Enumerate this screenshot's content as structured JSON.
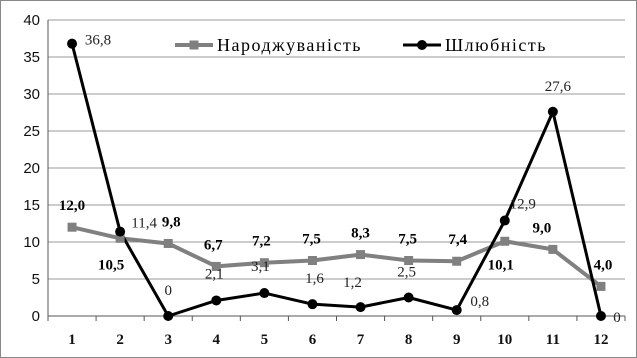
{
  "chart_data": {
    "type": "line",
    "title": "",
    "xlabel": "",
    "ylabel": "",
    "x": [
      "1",
      "2",
      "3",
      "4",
      "5",
      "6",
      "7",
      "8",
      "9",
      "10",
      "11",
      "12"
    ],
    "ylim": [
      0,
      40
    ],
    "yticks": [
      "0",
      "5",
      "10",
      "15",
      "20",
      "25",
      "30",
      "35",
      "40"
    ],
    "grid": true,
    "legend": "top",
    "series": [
      {
        "name": "Народжуваність",
        "color": "#808080",
        "marker": "square",
        "values": [
          12.0,
          10.5,
          9.8,
          6.7,
          7.2,
          7.5,
          8.3,
          7.5,
          7.4,
          10.1,
          9.0,
          4.0
        ],
        "labels": [
          "12,0",
          "10,5",
          "9,8",
          "6,7",
          "7,2",
          "7,5",
          "8,3",
          "7,5",
          "7,4",
          "10,1",
          "9,0",
          "4,0"
        ]
      },
      {
        "name": "Шлюбність",
        "color": "#000000",
        "marker": "circle",
        "values": [
          36.8,
          11.4,
          0,
          2.1,
          3.1,
          1.6,
          1.2,
          2.5,
          0.8,
          12.9,
          27.6,
          0
        ],
        "labels": [
          "36,8",
          "11,4",
          "0",
          "2,1",
          "3,1",
          "1,6",
          "1,2",
          "2,5",
          "0,8",
          "12,9",
          "27,6",
          "0"
        ]
      }
    ]
  }
}
